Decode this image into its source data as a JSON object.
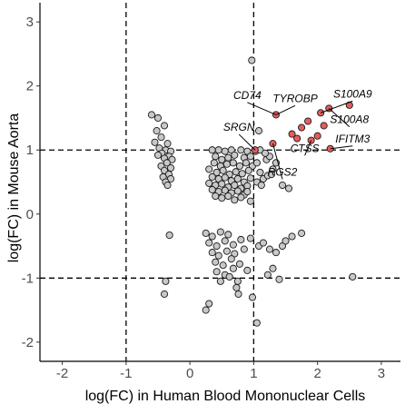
{
  "chart_data": {
    "type": "scatter",
    "title": "",
    "xlabel": "log(FC) in Human Blood Mononuclear Cells",
    "ylabel": "log(FC) in Mouse Aorta",
    "xlim": [
      -2.35,
      3.3
    ],
    "ylim": [
      -2.3,
      3.3
    ],
    "xticks": [
      -2,
      -1,
      0,
      1,
      2,
      3
    ],
    "yticks": [
      -2,
      -1,
      0,
      1,
      2,
      3
    ],
    "reference_lines": {
      "x": [
        -1,
        1
      ],
      "y": [
        -1,
        1
      ],
      "style": "dashed"
    },
    "grid": false,
    "colors": {
      "background": "#ffffff",
      "gray_point": "#c8c8c8",
      "highlight_point": "#e65c5c",
      "point_edge": "#1a1a1a"
    },
    "series": [
      {
        "values": [
          [
            -0.6,
            1.55
          ],
          [
            -0.5,
            1.5
          ],
          [
            -0.4,
            1.38
          ],
          [
            -0.52,
            1.3
          ],
          [
            -0.45,
            1.2
          ],
          [
            -0.55,
            1.12
          ],
          [
            -0.35,
            1.1
          ],
          [
            -0.48,
            1.03
          ],
          [
            -0.38,
            1.0
          ],
          [
            -0.3,
            0.98
          ],
          [
            -0.44,
            0.95
          ],
          [
            -0.33,
            0.9
          ],
          [
            -0.5,
            0.92
          ],
          [
            -0.4,
            0.87
          ],
          [
            -0.28,
            0.85
          ],
          [
            -0.36,
            0.8
          ],
          [
            -0.45,
            0.75
          ],
          [
            -0.3,
            0.72
          ],
          [
            -0.4,
            0.68
          ],
          [
            -0.33,
            0.62
          ],
          [
            -0.42,
            0.58
          ],
          [
            -0.3,
            0.55
          ],
          [
            -0.38,
            0.5
          ],
          [
            -0.35,
            0.45
          ],
          [
            -0.32,
            -0.33
          ],
          [
            -0.38,
            -1.05
          ],
          [
            -0.4,
            -1.25
          ],
          [
            0.35,
            1.0
          ],
          [
            0.45,
            1.0
          ],
          [
            0.55,
            0.98
          ],
          [
            0.65,
            1.0
          ],
          [
            0.8,
            1.0
          ],
          [
            0.9,
            0.98
          ],
          [
            0.4,
            0.9
          ],
          [
            0.5,
            0.85
          ],
          [
            0.6,
            0.88
          ],
          [
            0.7,
            0.92
          ],
          [
            0.85,
            0.88
          ],
          [
            0.95,
            0.9
          ],
          [
            0.38,
            0.8
          ],
          [
            0.48,
            0.75
          ],
          [
            0.58,
            0.78
          ],
          [
            0.68,
            0.8
          ],
          [
            0.78,
            0.75
          ],
          [
            0.88,
            0.8
          ],
          [
            0.98,
            0.75
          ],
          [
            0.3,
            0.7
          ],
          [
            0.42,
            0.65
          ],
          [
            0.52,
            0.68
          ],
          [
            0.62,
            0.62
          ],
          [
            0.72,
            0.66
          ],
          [
            0.82,
            0.63
          ],
          [
            0.92,
            0.68
          ],
          [
            0.35,
            0.58
          ],
          [
            0.45,
            0.55
          ],
          [
            0.55,
            0.57
          ],
          [
            0.65,
            0.52
          ],
          [
            0.75,
            0.55
          ],
          [
            0.85,
            0.5
          ],
          [
            0.95,
            0.56
          ],
          [
            0.3,
            0.48
          ],
          [
            0.4,
            0.45
          ],
          [
            0.5,
            0.47
          ],
          [
            0.6,
            0.42
          ],
          [
            0.7,
            0.45
          ],
          [
            0.8,
            0.4
          ],
          [
            0.9,
            0.44
          ],
          [
            0.35,
            0.38
          ],
          [
            0.45,
            0.35
          ],
          [
            0.55,
            0.37
          ],
          [
            0.65,
            0.33
          ],
          [
            0.75,
            0.36
          ],
          [
            0.85,
            0.3
          ],
          [
            0.4,
            0.28
          ],
          [
            0.5,
            0.25
          ],
          [
            0.6,
            0.28
          ],
          [
            0.7,
            0.22
          ],
          [
            0.8,
            0.26
          ],
          [
            0.9,
            0.35
          ],
          [
            0.95,
            0.2
          ],
          [
            0.97,
            2.4
          ],
          [
            1.05,
            0.8
          ],
          [
            1.1,
            0.65
          ],
          [
            1.15,
            0.55
          ],
          [
            1.22,
            0.6
          ],
          [
            1.05,
            0.5
          ],
          [
            1.12,
            0.45
          ],
          [
            1.2,
            0.85
          ],
          [
            1.25,
            0.9
          ],
          [
            1.3,
            0.7
          ],
          [
            1.28,
            0.62
          ],
          [
            1.35,
            0.8
          ],
          [
            1.45,
            0.45
          ],
          [
            1.55,
            0.4
          ],
          [
            1.08,
            1.3
          ],
          [
            1.03,
            0.98
          ],
          [
            1.1,
            1.0
          ],
          [
            1.18,
            0.95
          ],
          [
            0.25,
            -0.3
          ],
          [
            0.35,
            -0.35
          ],
          [
            0.48,
            -0.28
          ],
          [
            0.6,
            -0.32
          ],
          [
            0.3,
            -0.45
          ],
          [
            0.42,
            -0.5
          ],
          [
            0.55,
            -0.42
          ],
          [
            0.68,
            -0.48
          ],
          [
            0.8,
            -0.4
          ],
          [
            0.95,
            -0.38
          ],
          [
            0.35,
            -0.6
          ],
          [
            0.45,
            -0.65
          ],
          [
            0.58,
            -0.58
          ],
          [
            0.7,
            -0.62
          ],
          [
            0.85,
            -0.55
          ],
          [
            0.4,
            -0.75
          ],
          [
            0.52,
            -0.8
          ],
          [
            0.65,
            -0.7
          ],
          [
            0.78,
            -0.78
          ],
          [
            0.42,
            -0.9
          ],
          [
            0.55,
            -0.95
          ],
          [
            0.68,
            -0.85
          ],
          [
            0.48,
            -1.05
          ],
          [
            0.62,
            -0.98
          ],
          [
            0.75,
            -1.05
          ],
          [
            0.9,
            -0.88
          ],
          [
            0.73,
            -1.15
          ],
          [
            0.76,
            -1.25
          ],
          [
            0.3,
            -1.4
          ],
          [
            0.25,
            -1.5
          ],
          [
            0.98,
            -1.3
          ],
          [
            1.05,
            -1.7
          ],
          [
            1.08,
            -0.5
          ],
          [
            1.15,
            -0.45
          ],
          [
            1.25,
            -0.55
          ],
          [
            1.35,
            -0.6
          ],
          [
            1.3,
            -0.85
          ],
          [
            1.45,
            -0.5
          ],
          [
            1.5,
            -0.42
          ],
          [
            1.6,
            -0.35
          ],
          [
            1.75,
            -0.3
          ],
          [
            1.22,
            -0.95
          ],
          [
            1.4,
            -1.02
          ],
          [
            2.55,
            -0.98
          ]
        ]
      },
      {
        "values": [
          [
            1.02,
            1.0
          ],
          [
            1.35,
            1.55
          ],
          [
            1.3,
            1.1
          ],
          [
            1.6,
            1.25
          ],
          [
            1.68,
            1.18
          ],
          [
            1.75,
            1.35
          ],
          [
            1.85,
            1.45
          ],
          [
            1.9,
            1.15
          ],
          [
            2.0,
            1.22
          ],
          [
            2.05,
            1.58
          ],
          [
            2.1,
            1.38
          ],
          [
            2.18,
            1.65
          ],
          [
            2.2,
            1.02
          ],
          [
            2.5,
            1.7
          ]
        ]
      }
    ],
    "annotations": [
      {
        "text": "CD74",
        "point": [
          1.35,
          1.55
        ],
        "anchor": [
          0.9,
          1.8
        ]
      },
      {
        "text": "TYROBP",
        "point": [
          1.35,
          1.55
        ],
        "anchor": [
          1.65,
          1.75
        ]
      },
      {
        "text": "S100A9",
        "point": [
          2.05,
          1.58
        ],
        "anchor": [
          2.55,
          1.82
        ]
      },
      {
        "text": "S100A8",
        "point": [
          2.18,
          1.65
        ],
        "anchor": [
          2.5,
          1.42
        ]
      },
      {
        "text": "SRGN",
        "point": [
          1.02,
          1.0
        ],
        "anchor": [
          0.77,
          1.3
        ]
      },
      {
        "text": "CTSS",
        "point": [
          1.9,
          1.15
        ],
        "anchor": [
          1.8,
          0.97
        ]
      },
      {
        "text": "IFITM3",
        "point": [
          2.2,
          1.02
        ],
        "anchor": [
          2.55,
          1.12
        ]
      },
      {
        "text": "RGS2",
        "point": [
          1.3,
          1.1
        ],
        "anchor": [
          1.45,
          0.6
        ]
      }
    ]
  }
}
